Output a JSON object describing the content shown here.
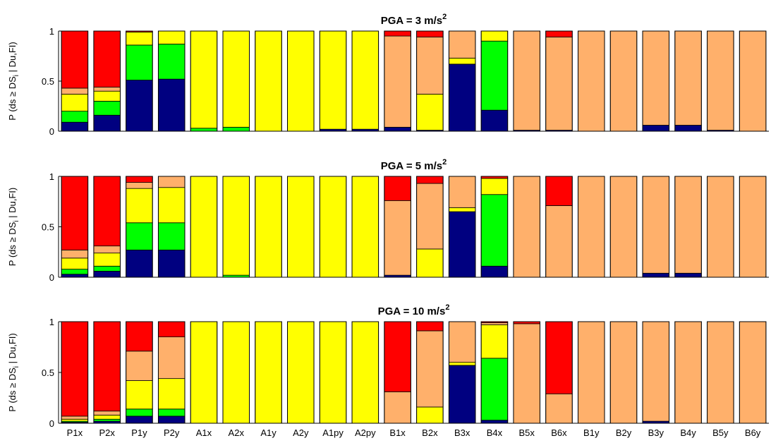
{
  "chart_data": {
    "type": "bar",
    "stacked": true,
    "categories": [
      "P1x",
      "P2x",
      "P1y",
      "P2y",
      "A1x",
      "A2x",
      "A1y",
      "A2y",
      "A1py",
      "A2py",
      "B1x",
      "B2x",
      "B3x",
      "B4x",
      "B5x",
      "B6x",
      "B1y",
      "B2y",
      "B3y",
      "B4y",
      "B5y",
      "B6y"
    ],
    "ylabel_parts": [
      "P (ds ",
      "≥",
      " DS",
      "i",
      " | Du,FI)"
    ],
    "stack_order_bottom_to_top": [
      "navy",
      "green",
      "yellow",
      "orange",
      "red"
    ],
    "colors": {
      "navy": "#000080",
      "green": "#00ff00",
      "yellow": "#ffff00",
      "orange": "#ffb06b",
      "red": "#ff0000"
    },
    "yticks": [
      "0",
      "0.5",
      "1"
    ],
    "ylim": [
      0,
      1
    ],
    "panels": [
      {
        "title_base": "PGA = 3 m/s",
        "title_sup": "2",
        "bars": [
          [
            0.09,
            0.11,
            0.17,
            0.06,
            0.57
          ],
          [
            0.16,
            0.14,
            0.1,
            0.04,
            0.56
          ],
          [
            0.51,
            0.35,
            0.13,
            0.0,
            0.01
          ],
          [
            0.52,
            0.35,
            0.13,
            0.0,
            0.0
          ],
          [
            0.0,
            0.03,
            0.97,
            0.0,
            0.0
          ],
          [
            0.0,
            0.04,
            0.96,
            0.0,
            0.0
          ],
          [
            0.0,
            0.0,
            1.0,
            0.0,
            0.0
          ],
          [
            0.0,
            0.0,
            1.0,
            0.0,
            0.0
          ],
          [
            0.02,
            0.0,
            0.98,
            0.0,
            0.0
          ],
          [
            0.02,
            0.0,
            0.98,
            0.0,
            0.0
          ],
          [
            0.04,
            0.0,
            0.0,
            0.91,
            0.05
          ],
          [
            0.01,
            0.0,
            0.36,
            0.57,
            0.06
          ],
          [
            0.67,
            0.0,
            0.06,
            0.27,
            0.0
          ],
          [
            0.21,
            0.69,
            0.1,
            0.0,
            0.0
          ],
          [
            0.01,
            0.0,
            0.0,
            0.99,
            0.0
          ],
          [
            0.01,
            0.0,
            0.0,
            0.93,
            0.06
          ],
          [
            0.0,
            0.0,
            0.0,
            1.0,
            0.0
          ],
          [
            0.0,
            0.0,
            0.0,
            1.0,
            0.0
          ],
          [
            0.06,
            0.0,
            0.0,
            0.94,
            0.0
          ],
          [
            0.06,
            0.0,
            0.0,
            0.94,
            0.0
          ],
          [
            0.01,
            0.0,
            0.0,
            0.99,
            0.0
          ],
          [
            0.0,
            0.0,
            0.0,
            1.0,
            0.0
          ]
        ]
      },
      {
        "title_base": "PGA = 5 m/s",
        "title_sup": "2",
        "bars": [
          [
            0.03,
            0.05,
            0.11,
            0.08,
            0.73
          ],
          [
            0.06,
            0.05,
            0.13,
            0.07,
            0.69
          ],
          [
            0.27,
            0.27,
            0.34,
            0.06,
            0.06
          ],
          [
            0.27,
            0.27,
            0.35,
            0.11,
            0.0
          ],
          [
            0.0,
            0.0,
            1.0,
            0.0,
            0.0
          ],
          [
            0.0,
            0.02,
            0.98,
            0.0,
            0.0
          ],
          [
            0.0,
            0.0,
            1.0,
            0.0,
            0.0
          ],
          [
            0.0,
            0.0,
            1.0,
            0.0,
            0.0
          ],
          [
            0.0,
            0.0,
            1.0,
            0.0,
            0.0
          ],
          [
            0.0,
            0.0,
            1.0,
            0.0,
            0.0
          ],
          [
            0.02,
            0.0,
            0.0,
            0.74,
            0.24
          ],
          [
            0.0,
            0.0,
            0.28,
            0.65,
            0.07
          ],
          [
            0.65,
            0.0,
            0.04,
            0.31,
            0.0
          ],
          [
            0.11,
            0.71,
            0.16,
            0.0,
            0.02
          ],
          [
            0.0,
            0.0,
            0.0,
            1.0,
            0.0
          ],
          [
            0.0,
            0.0,
            0.0,
            0.71,
            0.29
          ],
          [
            0.0,
            0.0,
            0.0,
            1.0,
            0.0
          ],
          [
            0.0,
            0.0,
            0.0,
            1.0,
            0.0
          ],
          [
            0.04,
            0.0,
            0.0,
            0.96,
            0.0
          ],
          [
            0.04,
            0.0,
            0.0,
            0.96,
            0.0
          ],
          [
            0.0,
            0.0,
            0.0,
            1.0,
            0.0
          ],
          [
            0.0,
            0.0,
            0.0,
            1.0,
            0.0
          ]
        ]
      },
      {
        "title_base": "PGA = 10 m/s",
        "title_sup": "2",
        "bars": [
          [
            0.01,
            0.01,
            0.02,
            0.03,
            0.93
          ],
          [
            0.02,
            0.02,
            0.04,
            0.04,
            0.88
          ],
          [
            0.07,
            0.07,
            0.28,
            0.29,
            0.29
          ],
          [
            0.07,
            0.07,
            0.3,
            0.41,
            0.15
          ],
          [
            0.0,
            0.0,
            1.0,
            0.0,
            0.0
          ],
          [
            0.0,
            0.0,
            1.0,
            0.0,
            0.0
          ],
          [
            0.0,
            0.0,
            1.0,
            0.0,
            0.0
          ],
          [
            0.0,
            0.0,
            1.0,
            0.0,
            0.0
          ],
          [
            0.0,
            0.0,
            1.0,
            0.0,
            0.0
          ],
          [
            0.0,
            0.0,
            1.0,
            0.0,
            0.0
          ],
          [
            0.0,
            0.0,
            0.0,
            0.31,
            0.69
          ],
          [
            0.0,
            0.0,
            0.16,
            0.75,
            0.09
          ],
          [
            0.57,
            0.0,
            0.03,
            0.4,
            0.0
          ],
          [
            0.03,
            0.61,
            0.33,
            0.02,
            0.01
          ],
          [
            0.0,
            0.0,
            0.0,
            0.98,
            0.02
          ],
          [
            0.0,
            0.0,
            0.0,
            0.29,
            0.71
          ],
          [
            0.0,
            0.0,
            0.0,
            1.0,
            0.0
          ],
          [
            0.0,
            0.0,
            0.0,
            1.0,
            0.0
          ],
          [
            0.02,
            0.0,
            0.0,
            0.98,
            0.0
          ],
          [
            0.0,
            0.0,
            0.0,
            1.0,
            0.0
          ],
          [
            0.0,
            0.0,
            0.0,
            1.0,
            0.0
          ],
          [
            0.0,
            0.0,
            0.0,
            1.0,
            0.0
          ]
        ]
      }
    ]
  }
}
